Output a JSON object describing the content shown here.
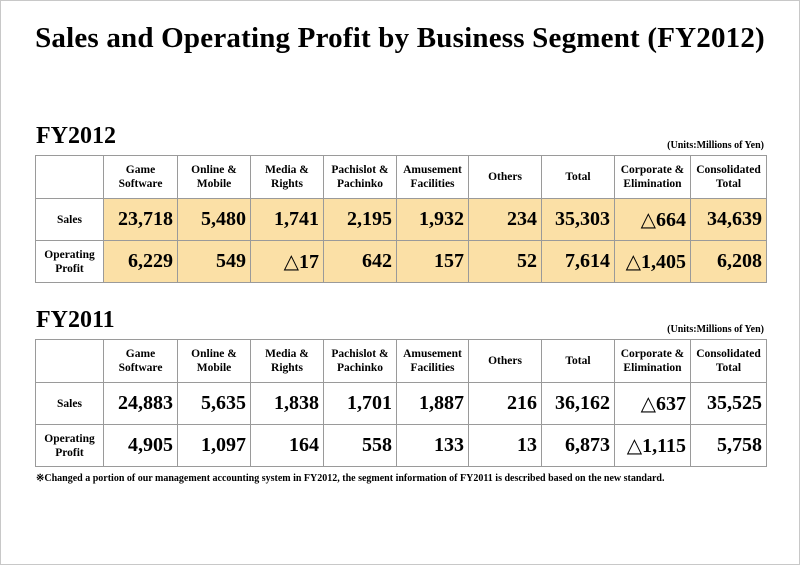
{
  "title": "Sales and Operating Profit by Business Segment (FY2012)",
  "units": "(Units:Millions of Yen)",
  "highlight_color": "#fbe0a6",
  "columns": [
    {
      "line1": "Game",
      "line2": "Software"
    },
    {
      "line1": "Online &",
      "line2": "Mobile"
    },
    {
      "line1": "Media &",
      "line2": "Rights"
    },
    {
      "line1": "Pachislot &",
      "line2": "Pachinko"
    },
    {
      "line1": "Amusement",
      "line2": "Facilities"
    },
    {
      "line1": "Others",
      "line2": ""
    },
    {
      "line1": "Total",
      "line2": ""
    },
    {
      "line1": "Corporate &",
      "line2": "Elimination"
    },
    {
      "line1": "Consolidated",
      "line2": "Total"
    }
  ],
  "row_labels": {
    "sales": "Sales",
    "op_line1": "Operating",
    "op_line2": "Profit"
  },
  "fy2012": {
    "label": "FY2012",
    "sales": [
      "23,718",
      "5,480",
      "1,741",
      "2,195",
      "1,932",
      "234",
      "35,303",
      "△664",
      "34,639"
    ],
    "operating_profit": [
      "6,229",
      "549",
      "△17",
      "642",
      "157",
      "52",
      "7,614",
      "△1,405",
      "6,208"
    ]
  },
  "fy2011": {
    "label": "FY2011",
    "sales": [
      "24,883",
      "5,635",
      "1,838",
      "1,701",
      "1,887",
      "216",
      "36,162",
      "△637",
      "35,525"
    ],
    "operating_profit": [
      "4,905",
      "1,097",
      "164",
      "558",
      "133",
      "13",
      "6,873",
      "△1,115",
      "5,758"
    ]
  },
  "note": "※Changed a portion of our management accounting system in FY2012, the segment information of FY2011 is described based on the new standard."
}
